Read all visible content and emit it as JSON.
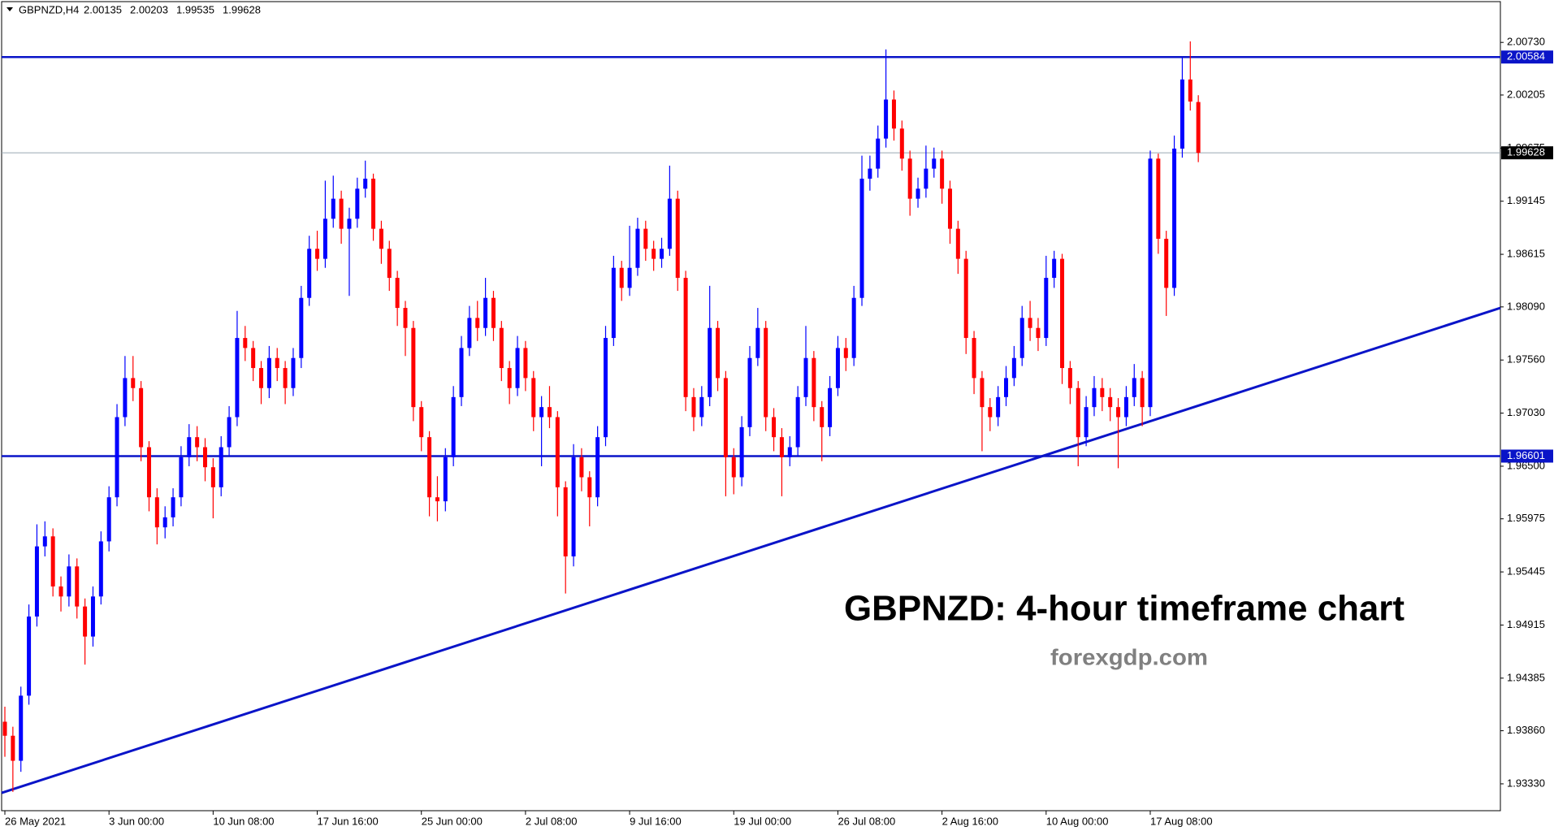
{
  "chart_data": {
    "type": "candlestick",
    "symbol": "GBPNZD,H4",
    "title": "GBPNZD: 4-hour timeframe chart",
    "subtitle": "forexgdp.com",
    "categories": [
      "26 May 2021",
      null,
      null,
      null,
      null,
      null,
      null,
      null,
      null,
      null,
      null,
      null,
      null,
      "3 Jun 00:00",
      null,
      null,
      null,
      null,
      null,
      null,
      null,
      null,
      null,
      null,
      null,
      null,
      "10 Jun 08:00",
      null,
      null,
      null,
      null,
      null,
      null,
      null,
      null,
      null,
      null,
      null,
      null,
      "17 Jun 16:00",
      null,
      null,
      null,
      null,
      null,
      null,
      null,
      null,
      null,
      null,
      null,
      null,
      "25 Jun 00:00",
      null,
      null,
      null,
      null,
      null,
      null,
      null,
      null,
      null,
      null,
      null,
      null,
      "2 Jul 08:00",
      null,
      null,
      null,
      null,
      null,
      null,
      null,
      null,
      null,
      null,
      null,
      null,
      "9 Jul 16:00",
      null,
      null,
      null,
      null,
      null,
      null,
      null,
      null,
      null,
      null,
      null,
      null,
      "19 Jul 00:00",
      null,
      null,
      null,
      null,
      null,
      null,
      null,
      null,
      null,
      null,
      null,
      null,
      "26 Jul 08:00",
      null,
      null,
      null,
      null,
      null,
      null,
      null,
      null,
      null,
      null,
      null,
      null,
      "2 Aug 16:00",
      null,
      null,
      null,
      null,
      null,
      null,
      null,
      null,
      null,
      null,
      null,
      null,
      "10 Aug 00:00",
      null,
      null,
      null,
      null,
      null,
      null,
      null,
      null,
      null,
      null,
      null,
      null,
      "17 Aug 08:00",
      null,
      null,
      null,
      null,
      null,
      null
    ],
    "open": [
      1.9395,
      1.9381,
      1.9356,
      1.9421,
      1.95,
      1.957,
      1.958,
      1.953,
      1.952,
      1.955,
      1.951,
      1.948,
      1.952,
      1.9575,
      1.9619,
      1.9699,
      1.9738,
      1.9728,
      1.9669,
      1.9619,
      1.9589,
      1.9599,
      1.9619,
      1.9659,
      1.9679,
      1.9669,
      1.9649,
      1.9629,
      1.9669,
      1.9699,
      1.9778,
      1.9768,
      1.9748,
      1.9728,
      1.9758,
      1.9748,
      1.9728,
      1.9758,
      1.9818,
      1.9867,
      1.9857,
      1.9897,
      1.9917,
      1.9887,
      1.9897,
      1.9927,
      1.9937,
      1.9887,
      1.9867,
      1.9838,
      1.9808,
      1.9788,
      1.9709,
      1.9679,
      1.9619,
      1.9615,
      1.9659,
      1.9719,
      1.9768,
      1.9798,
      1.9788,
      1.9818,
      1.9788,
      1.9748,
      1.9728,
      1.9768,
      1.9738,
      1.9699,
      1.9709,
      1.9699,
      1.9629,
      1.956,
      1.9659,
      1.9639,
      1.9619,
      1.9679,
      1.9778,
      1.9848,
      1.9828,
      1.9848,
      1.9887,
      1.9867,
      1.9857,
      1.9867,
      1.9917,
      1.9838,
      1.9719,
      1.9699,
      1.9719,
      1.9788,
      1.9738,
      1.9659,
      1.9639,
      1.9689,
      1.9758,
      1.9788,
      1.9699,
      1.9679,
      1.9659,
      1.9669,
      1.9719,
      1.9758,
      1.9709,
      1.9689,
      1.9728,
      1.9768,
      1.9758,
      1.9818,
      1.9937,
      1.9947,
      1.9977,
      2.0016,
      1.9987,
      1.9957,
      1.9917,
      1.9927,
      1.9947,
      1.9957,
      1.9927,
      1.9887,
      1.9857,
      1.9778,
      1.9738,
      1.9709,
      1.9699,
      1.9719,
      1.9738,
      1.9758,
      1.9798,
      1.9788,
      1.9778,
      1.9838,
      1.9857,
      1.9748,
      1.9728,
      1.9679,
      1.9709,
      1.9728,
      1.9719,
      1.9709,
      1.9699,
      1.9719,
      1.9738,
      1.9709,
      1.9957,
      1.9877,
      1.9828,
      1.9967,
      2.0036,
      2.00135
    ],
    "high": [
      1.941,
      1.939,
      1.943,
      1.9512,
      1.9592,
      1.9595,
      1.9588,
      1.954,
      1.9562,
      1.9558,
      1.9518,
      1.953,
      1.9585,
      1.963,
      1.9712,
      1.976,
      1.976,
      1.9735,
      1.9675,
      1.9628,
      1.961,
      1.9628,
      1.967,
      1.9692,
      1.969,
      1.9678,
      1.9658,
      1.968,
      1.971,
      1.9805,
      1.979,
      1.9775,
      1.9755,
      1.977,
      1.9768,
      1.9755,
      1.9768,
      1.983,
      1.988,
      1.9885,
      1.9935,
      1.994,
      1.9925,
      1.9908,
      1.9938,
      1.9955,
      1.9942,
      1.9895,
      1.9875,
      1.9845,
      1.9815,
      1.9795,
      1.9715,
      1.9685,
      1.964,
      1.9668,
      1.973,
      1.978,
      1.981,
      1.9815,
      1.9838,
      1.9825,
      1.9795,
      1.9755,
      1.978,
      1.9775,
      1.9745,
      1.972,
      1.973,
      1.9705,
      1.9635,
      1.9672,
      1.9668,
      1.9645,
      1.969,
      1.979,
      1.986,
      1.9855,
      1.989,
      1.9898,
      1.9895,
      1.9875,
      1.9878,
      1.995,
      1.9925,
      1.9845,
      1.9728,
      1.973,
      1.983,
      1.9795,
      1.9745,
      1.9668,
      1.97,
      1.977,
      1.9808,
      1.9795,
      1.9708,
      1.9688,
      1.968,
      1.973,
      1.979,
      1.9765,
      1.9715,
      1.974,
      1.978,
      1.9778,
      1.983,
      1.996,
      1.996,
      1.999,
      2.0066,
      2.0025,
      1.9995,
      1.9965,
      1.9938,
      1.997,
      1.9968,
      1.9965,
      1.9935,
      1.9895,
      1.9865,
      1.9785,
      1.9745,
      1.9718,
      1.973,
      1.975,
      1.977,
      1.981,
      1.9815,
      1.9798,
      1.986,
      1.9865,
      1.9862,
      1.9755,
      1.9735,
      1.972,
      1.974,
      1.9738,
      1.9728,
      1.9718,
      1.973,
      1.9752,
      1.9745,
      1.9965,
      1.9962,
      1.9885,
      1.998,
      2.0058,
      2.0074,
      2.00203
    ],
    "low": [
      1.936,
      1.9325,
      1.9345,
      1.9412,
      1.949,
      1.956,
      1.952,
      1.9505,
      1.951,
      1.9498,
      1.9452,
      1.947,
      1.9512,
      1.9565,
      1.961,
      1.969,
      1.9715,
      1.9655,
      1.9605,
      1.9572,
      1.9578,
      1.959,
      1.961,
      1.965,
      1.9655,
      1.9635,
      1.9598,
      1.962,
      1.966,
      1.969,
      1.9755,
      1.9735,
      1.9712,
      1.9718,
      1.9735,
      1.9712,
      1.972,
      1.9748,
      1.981,
      1.9845,
      1.9848,
      1.9888,
      1.9872,
      1.982,
      1.9888,
      1.9918,
      1.9875,
      1.9852,
      1.9825,
      1.979,
      1.976,
      1.9695,
      1.9665,
      1.96,
      1.9595,
      1.9605,
      1.965,
      1.971,
      1.976,
      1.9775,
      1.978,
      1.9775,
      1.9735,
      1.9712,
      1.972,
      1.9725,
      1.9685,
      1.965,
      1.9688,
      1.96,
      1.9523,
      1.955,
      1.9625,
      1.959,
      1.961,
      1.967,
      1.977,
      1.9815,
      1.982,
      1.984,
      1.9855,
      1.9845,
      1.9848,
      1.986,
      1.9825,
      1.9705,
      1.9685,
      1.969,
      1.971,
      1.9725,
      1.962,
      1.9622,
      1.963,
      1.968,
      1.975,
      1.9685,
      1.9665,
      1.962,
      1.965,
      1.966,
      1.971,
      1.9695,
      1.9655,
      1.968,
      1.972,
      1.9745,
      1.975,
      1.981,
      1.9925,
      1.9938,
      1.9968,
      1.9975,
      1.9945,
      1.99,
      1.9908,
      1.9918,
      1.9938,
      1.9912,
      1.9872,
      1.9842,
      1.9762,
      1.9722,
      1.9665,
      1.9685,
      1.969,
      1.971,
      1.973,
      1.975,
      1.9775,
      1.9765,
      1.977,
      1.9828,
      1.9732,
      1.9712,
      1.965,
      1.967,
      1.97,
      1.9705,
      1.9695,
      1.9648,
      1.969,
      1.971,
      1.969,
      1.97,
      1.9862,
      1.98,
      1.982,
      1.9958,
      2.0005,
      1.99535
    ],
    "close": [
      1.9381,
      1.9356,
      1.9421,
      1.95,
      1.957,
      1.958,
      1.953,
      1.952,
      1.955,
      1.951,
      1.948,
      1.952,
      1.9575,
      1.9619,
      1.9699,
      1.9738,
      1.9728,
      1.9669,
      1.9619,
      1.9589,
      1.9599,
      1.9619,
      1.9659,
      1.9679,
      1.9669,
      1.9649,
      1.9629,
      1.9669,
      1.9699,
      1.9778,
      1.9768,
      1.9748,
      1.9728,
      1.9758,
      1.9748,
      1.9728,
      1.9758,
      1.9818,
      1.9867,
      1.9857,
      1.9897,
      1.9917,
      1.9887,
      1.9897,
      1.9927,
      1.9937,
      1.9887,
      1.9867,
      1.9838,
      1.9808,
      1.9788,
      1.9709,
      1.9679,
      1.9619,
      1.9615,
      1.9659,
      1.9719,
      1.9768,
      1.9798,
      1.9788,
      1.9818,
      1.9788,
      1.9748,
      1.9728,
      1.9768,
      1.9738,
      1.9699,
      1.9709,
      1.9699,
      1.9629,
      1.956,
      1.9659,
      1.9639,
      1.9619,
      1.9679,
      1.9778,
      1.9848,
      1.9828,
      1.9848,
      1.9887,
      1.9867,
      1.9857,
      1.9867,
      1.9917,
      1.9838,
      1.9719,
      1.9699,
      1.9719,
      1.9788,
      1.9738,
      1.9659,
      1.9639,
      1.9689,
      1.9758,
      1.9788,
      1.9699,
      1.9679,
      1.9659,
      1.9669,
      1.9719,
      1.9758,
      1.9709,
      1.9689,
      1.9728,
      1.9768,
      1.9758,
      1.9818,
      1.9937,
      1.9947,
      1.9977,
      2.0016,
      1.9987,
      1.9957,
      1.9917,
      1.9927,
      1.9947,
      1.9957,
      1.9927,
      1.9887,
      1.9857,
      1.9778,
      1.9738,
      1.9709,
      1.9699,
      1.9719,
      1.9738,
      1.9758,
      1.9798,
      1.9788,
      1.9778,
      1.9838,
      1.9857,
      1.9748,
      1.9728,
      1.9679,
      1.9709,
      1.9728,
      1.9719,
      1.9709,
      1.9699,
      1.9719,
      1.9738,
      1.9709,
      1.9957,
      1.9877,
      1.9828,
      1.9967,
      2.0036,
      2.0014,
      1.99628
    ],
    "up_color": "#0000ff",
    "down_color": "#ff0000",
    "ylim": [
      1.93062,
      2.01137
    ],
    "yticks": [
      {
        "value": 2.0073,
        "label": "2.00730"
      },
      2.00205,
      1.99675,
      1.99145,
      1.98615,
      {
        "value": 1.9809,
        "label": "1.98090"
      },
      {
        "value": 1.9756,
        "label": "1.97560"
      },
      {
        "value": 1.9703,
        "label": "1.97030"
      },
      {
        "value": 1.965,
        "label": "1.96500"
      },
      1.95975,
      1.95445,
      1.94915,
      1.94385,
      {
        "value": 1.9386,
        "label": "1.93860"
      },
      {
        "value": 1.9333,
        "label": "1.93330"
      }
    ],
    "levels": [
      2.00584,
      1.96601
    ],
    "level_color": "#0a14c8",
    "trendline": [
      1.9324,
      1.9808
    ],
    "price_line_color": "#9aa6b2"
  }
}
